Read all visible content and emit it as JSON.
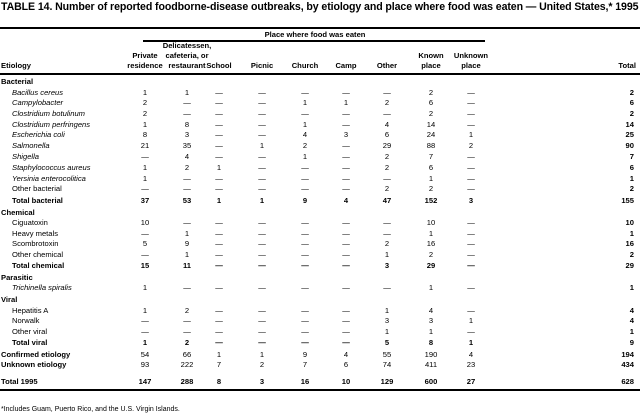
{
  "title": "TABLE 14. Number of reported foodborne-disease  outbreaks, by etiology and place where food was eaten — United States,* 1995",
  "header": {
    "group_label": "Place where food was eaten",
    "etiology_label": "Etiology",
    "columns": [
      [
        "Private",
        "residence"
      ],
      [
        "Delicatessen,",
        "cafeteria, or",
        "restaurant"
      ],
      [
        "School"
      ],
      [
        "Picnic"
      ],
      [
        "Church"
      ],
      [
        "Camp"
      ],
      [
        "Other"
      ],
      [
        "Known",
        "place"
      ],
      [
        "Unknown",
        "place"
      ],
      [
        "Total"
      ]
    ]
  },
  "rows": [
    {
      "type": "group",
      "label": "Bacterial",
      "values": []
    },
    {
      "type": "item",
      "italic": true,
      "label": "Bacillus cereus",
      "values": [
        "1",
        "1",
        "—",
        "—",
        "—",
        "—",
        "—",
        "2",
        "—",
        "2"
      ]
    },
    {
      "type": "item",
      "italic": true,
      "label": "Campylobacter",
      "values": [
        "2",
        "—",
        "—",
        "—",
        "1",
        "1",
        "2",
        "6",
        "—",
        "6"
      ]
    },
    {
      "type": "item",
      "italic": true,
      "label": "Clostridium botulinum",
      "values": [
        "2",
        "—",
        "—",
        "—",
        "—",
        "—",
        "—",
        "2",
        "—",
        "2"
      ]
    },
    {
      "type": "item",
      "italic": true,
      "label": "Clostridium perfringens",
      "values": [
        "1",
        "8",
        "—",
        "—",
        "1",
        "—",
        "4",
        "14",
        "—",
        "14"
      ]
    },
    {
      "type": "item",
      "italic": true,
      "label": "Escherichia coli",
      "values": [
        "8",
        "3",
        "—",
        "—",
        "4",
        "3",
        "6",
        "24",
        "1",
        "25"
      ]
    },
    {
      "type": "item",
      "italic": true,
      "label": "Salmonella",
      "values": [
        "21",
        "35",
        "—",
        "1",
        "2",
        "—",
        "29",
        "88",
        "2",
        "90"
      ]
    },
    {
      "type": "item",
      "italic": true,
      "label": "Shigella",
      "values": [
        "—",
        "4",
        "—",
        "—",
        "1",
        "—",
        "2",
        "7",
        "—",
        "7"
      ]
    },
    {
      "type": "item",
      "italic": true,
      "label": "Staphylococcus aureus",
      "values": [
        "1",
        "2",
        "1",
        "—",
        "—",
        "—",
        "2",
        "6",
        "—",
        "6"
      ]
    },
    {
      "type": "item",
      "italic": true,
      "label": "Yersinia enterocolitica",
      "values": [
        "1",
        "—",
        "—",
        "—",
        "—",
        "—",
        "—",
        "1",
        "—",
        "1"
      ]
    },
    {
      "type": "item",
      "italic": false,
      "label": "Other bacterial",
      "values": [
        "—",
        "—",
        "—",
        "—",
        "—",
        "—",
        "2",
        "2",
        "—",
        "2"
      ]
    },
    {
      "type": "total",
      "label": "Total bacterial",
      "values": [
        "37",
        "53",
        "1",
        "1",
        "9",
        "4",
        "47",
        "152",
        "3",
        "155"
      ]
    },
    {
      "type": "group",
      "label": "Chemical",
      "values": []
    },
    {
      "type": "item",
      "italic": false,
      "label": "Ciguatoxin",
      "values": [
        "10",
        "—",
        "—",
        "—",
        "—",
        "—",
        "—",
        "10",
        "—",
        "10"
      ]
    },
    {
      "type": "item",
      "italic": false,
      "label": "Heavy metals",
      "values": [
        "—",
        "1",
        "—",
        "—",
        "—",
        "—",
        "—",
        "1",
        "—",
        "1"
      ]
    },
    {
      "type": "item",
      "italic": false,
      "label": "Scombrotoxin",
      "values": [
        "5",
        "9",
        "—",
        "—",
        "—",
        "—",
        "2",
        "16",
        "—",
        "16"
      ]
    },
    {
      "type": "item",
      "italic": false,
      "label": "Other chemical",
      "values": [
        "—",
        "1",
        "—",
        "—",
        "—",
        "—",
        "1",
        "2",
        "—",
        "2"
      ]
    },
    {
      "type": "total",
      "label": "Total chemical",
      "values": [
        "15",
        "11",
        "—",
        "—",
        "—",
        "—",
        "3",
        "29",
        "—",
        "29"
      ]
    },
    {
      "type": "group",
      "label": "Parasitic",
      "values": []
    },
    {
      "type": "item",
      "italic": true,
      "label": "Trichinella spiralis",
      "values": [
        "1",
        "—",
        "—",
        "—",
        "—",
        "—",
        "—",
        "1",
        "—",
        "1"
      ]
    },
    {
      "type": "group",
      "label": "Viral",
      "values": []
    },
    {
      "type": "item",
      "italic": false,
      "label": "Hepatitis A",
      "values": [
        "1",
        "2",
        "—",
        "—",
        "—",
        "—",
        "1",
        "4",
        "—",
        "4"
      ]
    },
    {
      "type": "item",
      "italic": false,
      "label": "Norwalk",
      "values": [
        "—",
        "—",
        "—",
        "—",
        "—",
        "—",
        "3",
        "3",
        "1",
        "4"
      ]
    },
    {
      "type": "item",
      "italic": false,
      "label": "Other viral",
      "values": [
        "—",
        "—",
        "—",
        "—",
        "—",
        "—",
        "1",
        "1",
        "—",
        "1"
      ]
    },
    {
      "type": "total",
      "label": "Total viral",
      "values": [
        "1",
        "2",
        "—",
        "—",
        "—",
        "—",
        "5",
        "8",
        "1",
        "9"
      ]
    },
    {
      "type": "summary",
      "label": "Confirmed etiology",
      "values": [
        "54",
        "66",
        "1",
        "1",
        "9",
        "4",
        "55",
        "190",
        "4",
        "194"
      ]
    },
    {
      "type": "summary",
      "label": "Unknown etiology",
      "values": [
        "93",
        "222",
        "7",
        "2",
        "7",
        "6",
        "74",
        "411",
        "23",
        "434"
      ]
    },
    {
      "type": "grand",
      "label": "Total 1995",
      "values": [
        "147",
        "288",
        "8",
        "3",
        "16",
        "10",
        "129",
        "600",
        "27",
        "628"
      ]
    }
  ],
  "footnote": "*Includes Guam, Puerto Rico, and the U.S. Virgin Islands."
}
